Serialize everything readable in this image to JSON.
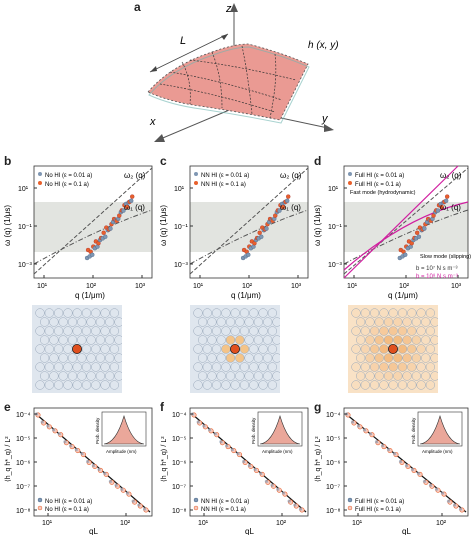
{
  "panel_labels": [
    "a",
    "b",
    "c",
    "d",
    "e",
    "f",
    "g"
  ],
  "panel_a": {
    "axis_z": "z",
    "axis_x": "x",
    "axis_y": "y",
    "length_label": "L",
    "height_label": "h (x, y)"
  },
  "top_row": {
    "ylabel": "ω (q) (1/μs)",
    "xlabel": "q (1/μm)",
    "x_ticks": [
      "10¹",
      "10²",
      "10³"
    ],
    "y_ticks": [
      "10¹",
      "10⁻¹",
      "10⁻³"
    ],
    "curve_labels": [
      "ω₂ (q)",
      "ω₁ (q)"
    ],
    "panels": [
      {
        "legend": [
          "No HI (ε = 0.01 a)",
          "No HI (ε = 0.1 a)"
        ]
      },
      {
        "legend": [
          "NN HI (ε = 0.01 a)",
          "NN HI (ε = 0.1 a)"
        ]
      },
      {
        "legend": [
          "Full HI (ε = 0.01 a)",
          "Full HI (ε = 0.1 a)"
        ],
        "annotations": [
          "Fast mode (hydrodynamic)",
          "Slow mode (slipping)"
        ],
        "b_values": [
          "b = 10⁷ N s m⁻³",
          "b = 10⁸ N s m⁻³"
        ]
      }
    ]
  },
  "bottom_row": {
    "ylabel": "⟨h_q h*_q⟩ / L²",
    "xlabel": "qL",
    "x_ticks": [
      "10¹",
      "10²"
    ],
    "y_ticks": [
      "10⁻⁴",
      "10⁻⁵",
      "10⁻⁶",
      "10⁻⁷",
      "10⁻⁸"
    ],
    "inset_ylabel": "Prob. density",
    "inset_xlabel": "Amplitude (nm)",
    "inset_ticks": [
      "−0.005",
      "0.000",
      "0.005"
    ],
    "panels": [
      {
        "legend": [
          "No HI (ε = 0.01 a)",
          "No HI (ε = 0.1 a)"
        ]
      },
      {
        "legend": [
          "NN HI (ε = 0.01 a)",
          "NN HI (ε = 0.1 a)"
        ]
      },
      {
        "legend": [
          "Full HI (ε = 0.01 a)",
          "Full HI (ε = 0.1 a)"
        ]
      }
    ]
  },
  "colors": {
    "series_small": "#7f97b3",
    "series_large": "#e8602c",
    "shade": "#e2e4e0",
    "magenta": "#d11fa0",
    "lattice_bg": "#dfe6ee",
    "lattice_orange": "#f4c489"
  }
}
